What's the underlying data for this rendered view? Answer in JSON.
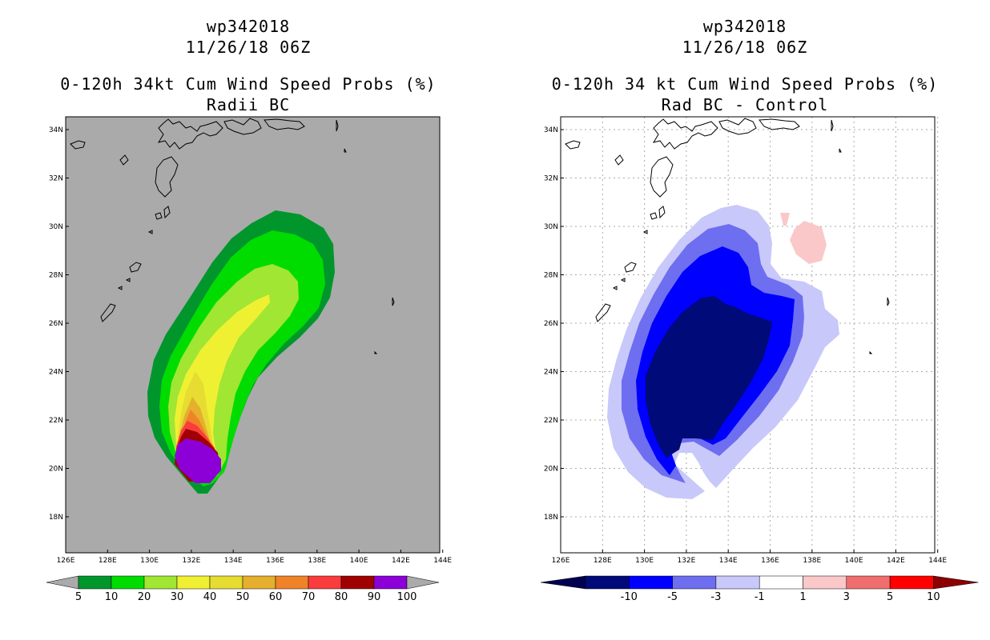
{
  "left_panel": {
    "storm_id": "wp342018",
    "datetime": "11/26/18 06Z",
    "product": "0-120h 34kt Cum Wind Speed Probs (%)",
    "subtitle": "Radii BC",
    "colorbar": {
      "labels": [
        "5",
        "10",
        "20",
        "30",
        "40",
        "50",
        "60",
        "70",
        "80",
        "90",
        "100"
      ],
      "colors": [
        "#00962c",
        "#00dc00",
        "#a0e632",
        "#f0f032",
        "#e6dc32",
        "#e6af2d",
        "#f08228",
        "#fa3c3c",
        "#a00000",
        "#8c00d7"
      ],
      "end_color": "#aaaaaa"
    },
    "background": "#aaaaaa"
  },
  "right_panel": {
    "storm_id": "wp342018",
    "datetime": "11/26/18 06Z",
    "product": "0-120h 34 kt Cum Wind Speed Probs (%)",
    "subtitle": "Rad BC - Control",
    "colorbar": {
      "labels": [
        "-10",
        "-5",
        "-3",
        "-1",
        "1",
        "3",
        "5",
        "10"
      ],
      "colors": [
        "#000a78",
        "#0000ff",
        "#6e6ef0",
        "#c8c8fa",
        "#ffffff",
        "#fac8c8",
        "#f06e6e",
        "#ff0000"
      ],
      "low_color": "#000050",
      "high_color": "#8c0000"
    }
  },
  "axes": {
    "lon_labels": [
      "126E",
      "128E",
      "130E",
      "132E",
      "134E",
      "136E",
      "138E",
      "140E",
      "142E",
      "144E"
    ],
    "lat_labels": [
      "18N",
      "20N",
      "22N",
      "24N",
      "26N",
      "28N",
      "30N",
      "32N",
      "34N"
    ]
  }
}
